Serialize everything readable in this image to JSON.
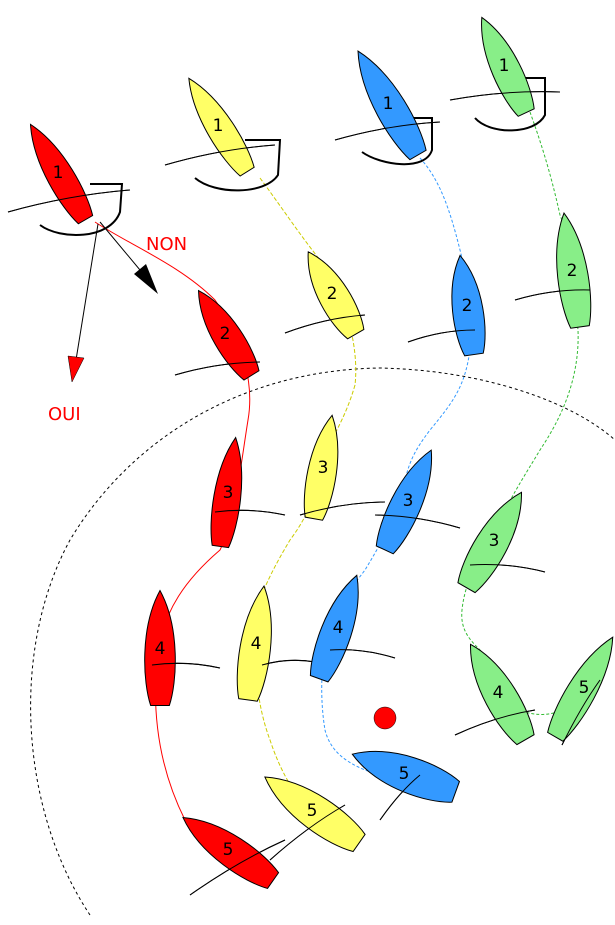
{
  "colors": {
    "red": "#ff0000",
    "yellow": "#ffff66",
    "blue": "#3399ff",
    "green": "#88ee88",
    "label_red": "#ff0000",
    "stroke": "#000000"
  },
  "labels": {
    "non": "NON",
    "oui": "OUI"
  },
  "fleets": [
    {
      "name": "red",
      "color_key": "red",
      "boats": [
        "1",
        "2",
        "3",
        "4",
        "5"
      ]
    },
    {
      "name": "yellow",
      "color_key": "yellow",
      "boats": [
        "1",
        "2",
        "3",
        "4",
        "5"
      ]
    },
    {
      "name": "blue",
      "color_key": "blue",
      "boats": [
        "1",
        "2",
        "3",
        "4",
        "5"
      ]
    },
    {
      "name": "green",
      "color_key": "green",
      "boats": [
        "1",
        "2",
        "3",
        "4",
        "5"
      ]
    }
  ],
  "mark": {
    "color_key": "red"
  }
}
